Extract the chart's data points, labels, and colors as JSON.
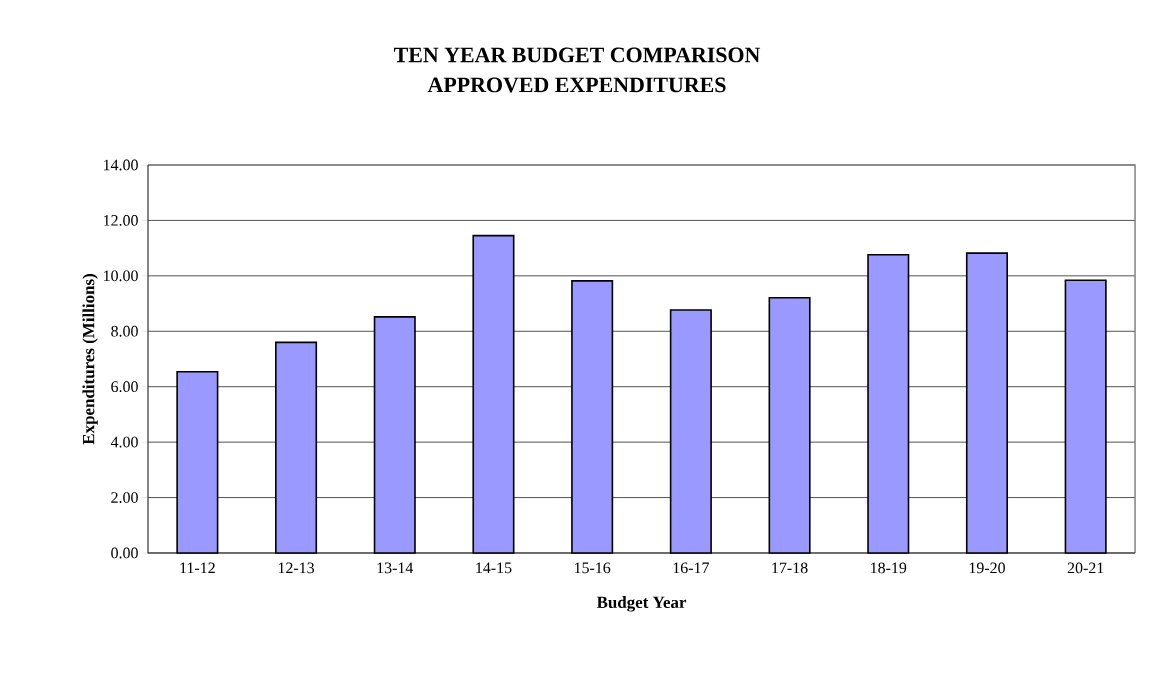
{
  "chart_data": {
    "type": "bar",
    "title": "TEN YEAR BUDGET COMPARISON",
    "subtitle": "APPROVED EXPENDITURES",
    "xlabel": "Budget Year",
    "ylabel": "Expenditures (Millions)",
    "categories": [
      "11-12",
      "12-13",
      "13-14",
      "14-15",
      "15-16",
      "16-17",
      "17-18",
      "18-19",
      "19-20",
      "20-21"
    ],
    "values": [
      6.54,
      7.6,
      8.52,
      11.45,
      9.82,
      8.77,
      9.21,
      10.76,
      10.82,
      9.84
    ],
    "color": "#9999ff",
    "ylim": [
      0,
      14
    ],
    "yticks": [
      {
        "value": 0,
        "label": "0.00"
      },
      {
        "value": 2,
        "label": "2.00"
      },
      {
        "value": 4,
        "label": "4.00"
      },
      {
        "value": 6,
        "label": "6.00"
      },
      {
        "value": 8,
        "label": "8.00"
      },
      {
        "value": 10,
        "label": "10.00"
      },
      {
        "value": 12,
        "label": "12.00"
      },
      {
        "value": 14,
        "label": "14.00"
      }
    ],
    "grid": "y"
  }
}
